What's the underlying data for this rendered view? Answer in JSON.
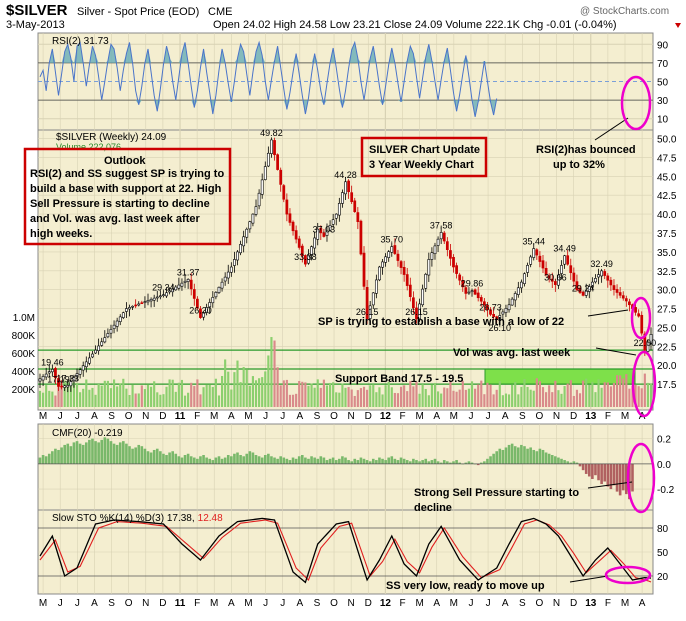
{
  "header": {
    "symbol": "$SILVER",
    "description": "Silver - Spot Price (EOD)",
    "exchange": "CME",
    "date": "3-May-2013",
    "ohlc_text": "Open 24.02  High 24.58  Low 23.21  Close 24.09  Volume 222.1K  Chg -0.01 (-0.04%)",
    "watermark": "@ StockCharts.com"
  },
  "colors": {
    "price_bg": "#f4eed0",
    "panel_bg": "#f4eed0",
    "rsi_line": "#4a74c9",
    "rsi_fill": "#6fb0b8",
    "candle_up": "#ffffff",
    "candle_down": "#cc0000",
    "volume_up": "#8ccf6e",
    "volume_down": "#d98a8a",
    "cmf_pos": "#79b86a",
    "cmf_neg": "#b06060",
    "stoch_k": "#000000",
    "stoch_d": "#e02020",
    "grid": "#d8d2b4",
    "support_band": "#7ee04a",
    "annotation_box": "#cc0000",
    "circle": "#ee00cc"
  },
  "chart_data": [
    {
      "type": "line",
      "name": "RSI(2)",
      "legend": "RSI(2) 31.73",
      "ylim": [
        0,
        100
      ],
      "ticks": [
        "90",
        "70",
        "50",
        "30",
        "10"
      ],
      "tick_values": [
        90,
        70,
        50,
        30,
        10
      ],
      "values": [
        55,
        62,
        40,
        70,
        85,
        60,
        35,
        58,
        82,
        90,
        75,
        50,
        88,
        92,
        70,
        45,
        68,
        88,
        78,
        55,
        30,
        50,
        72,
        90,
        85,
        65,
        40,
        62,
        80,
        92,
        70,
        40,
        25,
        45,
        70,
        85,
        60,
        35,
        18,
        42,
        68,
        88,
        75,
        50,
        30,
        55,
        80,
        92,
        70,
        45,
        22,
        40,
        65,
        85,
        60,
        38,
        15,
        35,
        62,
        85,
        70,
        48,
        28,
        50,
        75,
        90,
        82,
        58,
        35,
        60,
        82,
        92,
        78,
        50,
        30,
        52,
        72,
        88,
        65,
        42,
        20,
        38,
        60,
        80,
        58,
        35,
        15,
        32,
        58,
        80,
        62,
        40,
        25,
        48,
        70,
        86,
        65,
        42,
        22,
        40,
        64,
        84,
        92,
        75,
        50,
        30,
        52,
        75,
        88,
        68,
        45,
        25,
        45,
        68,
        86,
        70,
        48,
        28,
        50,
        72,
        88,
        80,
        55,
        32,
        54,
        76,
        90,
        72,
        50,
        30,
        52,
        72,
        86,
        62,
        38,
        18,
        36,
        58,
        78,
        55,
        30,
        12,
        28,
        50,
        72,
        50,
        28,
        14,
        31.73
      ]
    },
    {
      "type": "candlestick",
      "name": "$SILVER (Weekly)",
      "legend": "$SILVER (Weekly) 24.09",
      "volume_legend": "Volume 222,076",
      "ylim": [
        15,
        51
      ],
      "ticks": [
        "50.0",
        "47.5",
        "45.0",
        "42.5",
        "40.0",
        "37.5",
        "35.0",
        "32.5",
        "30.0",
        "27.5",
        "25.0",
        "22.5",
        "20.0",
        "17.5"
      ],
      "tick_values": [
        50,
        47.5,
        45,
        42.5,
        40,
        37.5,
        35,
        32.5,
        30,
        27.5,
        25,
        22.5,
        20,
        17.5
      ],
      "x_labels": [
        "M",
        "J",
        "J",
        "A",
        "S",
        "O",
        "N",
        "D",
        "11",
        "F",
        "M",
        "A",
        "M",
        "J",
        "J",
        "A",
        "S",
        "O",
        "N",
        "D",
        "12",
        "F",
        "M",
        "A",
        "M",
        "J",
        "J",
        "A",
        "S",
        "O",
        "N",
        "D",
        "13",
        "F",
        "M",
        "A"
      ],
      "anchors": [
        [
          0,
          18.2
        ],
        [
          4,
          19.46
        ],
        [
          6,
          17.19
        ],
        [
          9,
          17.33
        ],
        [
          18,
          22.0
        ],
        [
          28,
          27.5
        ],
        [
          40,
          29.34
        ],
        [
          48,
          31.37
        ],
        [
          52,
          26.3
        ],
        [
          62,
          33.0
        ],
        [
          70,
          41.0
        ],
        [
          75,
          49.82
        ],
        [
          80,
          40.0
        ],
        [
          86,
          33.38
        ],
        [
          90,
          38.0
        ],
        [
          92,
          37.03
        ],
        [
          96,
          40.0
        ],
        [
          99,
          44.28
        ],
        [
          103,
          39.0
        ],
        [
          106,
          26.15
        ],
        [
          110,
          33.0
        ],
        [
          114,
          35.7
        ],
        [
          118,
          32.0
        ],
        [
          122,
          26.15
        ],
        [
          126,
          34.0
        ],
        [
          130,
          37.58
        ],
        [
          134,
          33.0
        ],
        [
          138,
          29.5
        ],
        [
          140,
          29.86
        ],
        [
          144,
          28.0
        ],
        [
          146,
          26.73
        ],
        [
          148,
          26.1
        ],
        [
          152,
          28.0
        ],
        [
          156,
          31.0
        ],
        [
          160,
          35.44
        ],
        [
          164,
          32.0
        ],
        [
          167,
          30.66
        ],
        [
          170,
          34.49
        ],
        [
          174,
          30.0
        ],
        [
          176,
          29.24
        ],
        [
          179,
          31.0
        ],
        [
          182,
          32.49
        ],
        [
          186,
          30.0
        ],
        [
          190,
          28.5
        ],
        [
          194,
          26.5
        ],
        [
          196,
          22.0
        ],
        [
          198,
          24.09
        ]
      ],
      "price_labels": [
        {
          "text": "49.82",
          "x": 75,
          "y": 49.82
        },
        {
          "text": "44.28",
          "x": 99,
          "y": 44.28
        },
        {
          "text": "35.70",
          "x": 114,
          "y": 35.7
        },
        {
          "text": "37.58",
          "x": 130,
          "y": 37.58
        },
        {
          "text": "35.44",
          "x": 160,
          "y": 35.44
        },
        {
          "text": "34.49",
          "x": 170,
          "y": 34.49
        },
        {
          "text": "32.49",
          "x": 182,
          "y": 32.49
        },
        {
          "text": "37.03",
          "x": 92,
          "y": 37.03
        },
        {
          "text": "33.38",
          "x": 86,
          "y": 33.38
        },
        {
          "text": "31.37",
          "x": 48,
          "y": 31.37
        },
        {
          "text": "29.34",
          "x": 40,
          "y": 29.34
        },
        {
          "text": "26.30",
          "x": 52,
          "y": 26.3
        },
        {
          "text": "26.15",
          "x": 106,
          "y": 26.15
        },
        {
          "text": "26.15",
          "x": 122,
          "y": 26.15
        },
        {
          "text": "29.86",
          "x": 140,
          "y": 29.86
        },
        {
          "text": "26.73",
          "x": 146,
          "y": 26.73
        },
        {
          "text": "26.10",
          "x": 149,
          "y": 26.1
        },
        {
          "text": "30.66",
          "x": 167,
          "y": 30.66
        },
        {
          "text": "29.24",
          "x": 176,
          "y": 29.24
        },
        {
          "text": "22.00",
          "x": 196,
          "y": 22.0
        },
        {
          "text": "19.46",
          "x": 4,
          "y": 19.46
        },
        {
          "text": "17.19",
          "x": 6,
          "y": 17.19
        },
        {
          "text": "17.33",
          "x": 9,
          "y": 17.33
        }
      ],
      "support_line": 22.0,
      "support_band": [
        17.5,
        19.5
      ],
      "volume_ticks": [
        "1.0M",
        "800K",
        "600K",
        "400K",
        "200K"
      ],
      "volume_tick_values": [
        1000000,
        800000,
        600000,
        400000,
        200000
      ]
    },
    {
      "type": "bar",
      "name": "CMF(20)",
      "legend": "CMF(20) -0.219",
      "ylim": [
        -0.35,
        0.3
      ],
      "ticks": [
        "0.2",
        "0.0",
        "-0.2"
      ],
      "tick_values": [
        0.2,
        0.0,
        -0.2
      ],
      "values": [
        0.05,
        0.07,
        0.06,
        0.08,
        0.1,
        0.12,
        0.11,
        0.13,
        0.15,
        0.16,
        0.14,
        0.17,
        0.18,
        0.16,
        0.15,
        0.17,
        0.19,
        0.2,
        0.18,
        0.17,
        0.19,
        0.21,
        0.2,
        0.18,
        0.16,
        0.15,
        0.17,
        0.18,
        0.16,
        0.14,
        0.12,
        0.13,
        0.15,
        0.14,
        0.12,
        0.1,
        0.09,
        0.11,
        0.12,
        0.1,
        0.08,
        0.07,
        0.09,
        0.1,
        0.08,
        0.06,
        0.05,
        0.07,
        0.08,
        0.06,
        0.05,
        0.04,
        0.06,
        0.07,
        0.05,
        0.04,
        0.03,
        0.05,
        0.06,
        0.04,
        0.05,
        0.07,
        0.06,
        0.08,
        0.09,
        0.07,
        0.06,
        0.08,
        0.1,
        0.09,
        0.07,
        0.06,
        0.05,
        0.07,
        0.08,
        0.06,
        0.05,
        0.04,
        0.06,
        0.05,
        0.04,
        0.03,
        0.05,
        0.04,
        0.06,
        0.07,
        0.05,
        0.04,
        0.06,
        0.05,
        0.04,
        0.06,
        0.05,
        0.03,
        0.04,
        0.05,
        0.03,
        0.04,
        0.06,
        0.05,
        0.03,
        0.02,
        0.04,
        0.03,
        0.05,
        0.04,
        0.03,
        0.02,
        0.04,
        0.03,
        0.05,
        0.04,
        0.03,
        0.05,
        0.06,
        0.04,
        0.03,
        0.05,
        0.04,
        0.03,
        0.02,
        0.04,
        0.03,
        0.02,
        0.03,
        0.04,
        0.02,
        0.03,
        0.04,
        0.02,
        0.01,
        0.03,
        0.02,
        0.01,
        0.02,
        0.03,
        0.01,
        0.0,
        0.01,
        0.02,
        0.01,
        0.0,
        -0.01,
        0.01,
        0.02,
        0.04,
        0.06,
        0.08,
        0.1,
        0.12,
        0.11,
        0.13,
        0.15,
        0.16,
        0.14,
        0.13,
        0.15,
        0.14,
        0.12,
        0.13,
        0.11,
        0.1,
        0.12,
        0.11,
        0.09,
        0.08,
        0.07,
        0.06,
        0.05,
        0.04,
        0.03,
        0.02,
        0.01,
        0.02,
        0.01,
        -0.02,
        -0.05,
        -0.08,
        -0.1,
        -0.12,
        -0.09,
        -0.13,
        -0.16,
        -0.14,
        -0.18,
        -0.2,
        -0.17,
        -0.22,
        -0.25,
        -0.21,
        -0.24,
        -0.28,
        -0.219
      ]
    },
    {
      "type": "line",
      "name": "Slow STO",
      "legend_prefix": "Slow STO %K(14) %D(3) 17.38,",
      "legend_value": "12.48",
      "ylim": [
        0,
        100
      ],
      "ticks": [
        "80",
        "50",
        "20"
      ],
      "tick_values": [
        80,
        50,
        20
      ],
      "x_labels": [
        "M",
        "J",
        "J",
        "A",
        "S",
        "O",
        "N",
        "D",
        "11",
        "F",
        "M",
        "A",
        "M",
        "J",
        "J",
        "A",
        "S",
        "O",
        "N",
        "D",
        "12",
        "F",
        "M",
        "A",
        "M",
        "J",
        "J",
        "A",
        "S",
        "O",
        "N",
        "D",
        "13",
        "F",
        "M",
        "A"
      ],
      "k_anchors": [
        [
          0,
          45
        ],
        [
          4,
          70
        ],
        [
          8,
          20
        ],
        [
          12,
          30
        ],
        [
          18,
          85
        ],
        [
          24,
          90
        ],
        [
          32,
          88
        ],
        [
          40,
          85
        ],
        [
          46,
          60
        ],
        [
          52,
          40
        ],
        [
          58,
          70
        ],
        [
          64,
          88
        ],
        [
          72,
          92
        ],
        [
          76,
          90
        ],
        [
          82,
          25
        ],
        [
          86,
          12
        ],
        [
          90,
          60
        ],
        [
          96,
          85
        ],
        [
          100,
          88
        ],
        [
          106,
          15
        ],
        [
          110,
          40
        ],
        [
          114,
          70
        ],
        [
          118,
          35
        ],
        [
          122,
          20
        ],
        [
          126,
          60
        ],
        [
          130,
          82
        ],
        [
          136,
          40
        ],
        [
          142,
          15
        ],
        [
          148,
          30
        ],
        [
          152,
          60
        ],
        [
          156,
          88
        ],
        [
          160,
          92
        ],
        [
          164,
          85
        ],
        [
          168,
          70
        ],
        [
          172,
          45
        ],
        [
          176,
          20
        ],
        [
          180,
          40
        ],
        [
          184,
          55
        ],
        [
          188,
          35
        ],
        [
          192,
          15
        ],
        [
          196,
          18
        ],
        [
          198,
          17.38
        ]
      ],
      "d_anchors": [
        [
          0,
          40
        ],
        [
          5,
          65
        ],
        [
          9,
          25
        ],
        [
          13,
          32
        ],
        [
          19,
          80
        ],
        [
          25,
          88
        ],
        [
          33,
          86
        ],
        [
          41,
          82
        ],
        [
          47,
          62
        ],
        [
          53,
          42
        ],
        [
          59,
          68
        ],
        [
          65,
          86
        ],
        [
          73,
          90
        ],
        [
          77,
          86
        ],
        [
          83,
          30
        ],
        [
          87,
          15
        ],
        [
          91,
          55
        ],
        [
          97,
          82
        ],
        [
          101,
          86
        ],
        [
          107,
          20
        ],
        [
          111,
          38
        ],
        [
          115,
          66
        ],
        [
          119,
          38
        ],
        [
          123,
          24
        ],
        [
          127,
          56
        ],
        [
          131,
          80
        ],
        [
          137,
          44
        ],
        [
          143,
          18
        ],
        [
          149,
          28
        ],
        [
          153,
          56
        ],
        [
          157,
          85
        ],
        [
          161,
          90
        ],
        [
          165,
          84
        ],
        [
          169,
          70
        ],
        [
          173,
          48
        ],
        [
          177,
          24
        ],
        [
          181,
          38
        ],
        [
          185,
          52
        ],
        [
          189,
          36
        ],
        [
          193,
          18
        ],
        [
          197,
          14
        ],
        [
          198,
          12.48
        ]
      ]
    }
  ],
  "annotations": {
    "outlook_title": "Outlook",
    "outlook_body": [
      "RSI(2) and SS suggest SP is trying to",
      "build a base with support at 22. High",
      "Sell Pressure is starting to decline",
      "and Vol. was avg. last week after",
      "high weeks."
    ],
    "update_line1": "SILVER Chart Update",
    "update_line2": "3 Year Weekly Chart",
    "rsi_note_line1": "RSI(2)has bounced",
    "rsi_note_line2": "up to 32%",
    "sp_note": "SP is trying to establish a base with a low of 22",
    "vol_note": "Vol was avg. last week",
    "support_note": "Support Band 17.5 - 19.5",
    "cmf_note_line1": "Strong Sell Pressure starting to",
    "cmf_note_line2": "decline",
    "sto_note": "SS very low, ready to move up"
  }
}
